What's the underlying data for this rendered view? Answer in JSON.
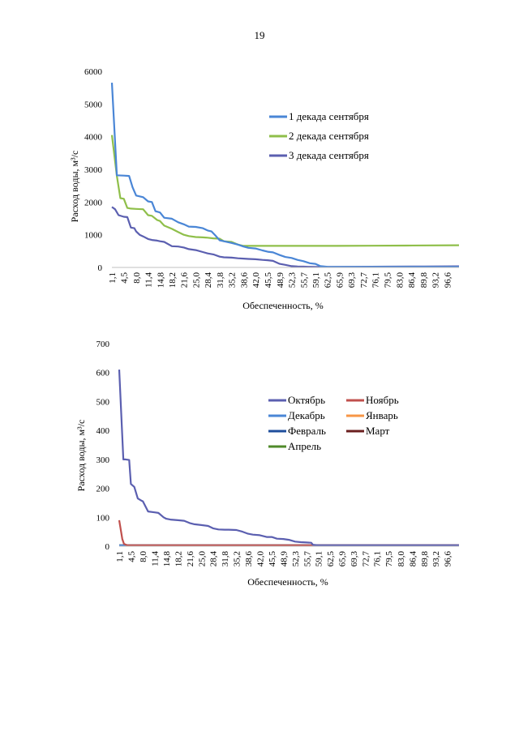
{
  "page_number": "19",
  "chart_data": [
    {
      "type": "line",
      "ylabel": "Расход воды, м³/с",
      "xlabel": "Обеспеченность, %",
      "ylim": [
        0,
        6000
      ],
      "yticks": [
        "0",
        "1000",
        "2000",
        "3000",
        "4000",
        "5000",
        "6000"
      ],
      "xticks": [
        "1,1",
        "4,5",
        "8,0",
        "11,4",
        "14,8",
        "18,2",
        "21,6",
        "25,0",
        "28,4",
        "31,8",
        "35,2",
        "38,6",
        "42,0",
        "45,5",
        "48,9",
        "52,3",
        "55,7",
        "59,1",
        "62,5",
        "65,9",
        "69,3",
        "72,7",
        "76,1",
        "79,5",
        "83,0",
        "86,4",
        "89,8",
        "93,2",
        "96,6"
      ],
      "xlim": [
        1.1,
        100
      ],
      "legend_position": "right",
      "series": [
        {
          "name": "1 декада сентября",
          "color": "#4a86d6",
          "x": [
            1.1,
            2.5,
            4.5,
            6.0,
            7.0,
            8.0,
            10.0,
            11.4,
            12.5,
            13.5,
            14.8,
            16.0,
            18.2,
            20.0,
            21.6,
            23.0,
            25.0,
            27.0,
            28.4,
            29.5,
            30.5,
            31.8,
            33.0,
            35.2,
            37.0,
            38.6,
            40.0,
            42.0,
            44.0,
            45.5,
            47.0,
            48.9,
            50.5,
            52.3,
            54.0,
            55.7,
            57.5,
            59.1,
            60.5,
            62.5,
            70,
            80,
            90,
            100
          ],
          "y": [
            5650,
            2820,
            2810,
            2800,
            2450,
            2200,
            2150,
            2020,
            2000,
            1720,
            1680,
            1520,
            1490,
            1380,
            1320,
            1250,
            1240,
            1200,
            1130,
            1100,
            990,
            830,
            800,
            750,
            700,
            640,
            600,
            580,
            520,
            480,
            460,
            380,
            320,
            290,
            230,
            190,
            130,
            110,
            40,
            20,
            15,
            15,
            15,
            15
          ]
        },
        {
          "name": "2 декада сентября",
          "color": "#8fbf4a",
          "x": [
            1.1,
            2.5,
            3.5,
            4.5,
            5.5,
            6.5,
            8.0,
            10.0,
            11.4,
            12.5,
            14.0,
            14.8,
            16.0,
            18.2,
            20.0,
            21.6,
            23.0,
            25.0,
            27.0,
            28.4,
            30.0,
            31.8,
            33.0,
            35.2,
            37.0,
            38.6,
            45,
            55,
            65,
            75,
            85,
            100
          ],
          "y": [
            4050,
            2800,
            2120,
            2100,
            1820,
            1800,
            1790,
            1780,
            1600,
            1580,
            1450,
            1420,
            1280,
            1180,
            1080,
            1000,
            960,
            930,
            920,
            910,
            890,
            880,
            800,
            780,
            700,
            660,
            660,
            660,
            660,
            665,
            670,
            680
          ]
        },
        {
          "name": "3 декада сентября",
          "color": "#5b5fb0",
          "x": [
            1.1,
            2.0,
            3.0,
            4.5,
            5.5,
            6.5,
            7.5,
            8.0,
            9.0,
            10.0,
            11.4,
            12.5,
            14.0,
            14.8,
            16.0,
            18.2,
            20.0,
            21.6,
            23.0,
            25.0,
            27.0,
            28.4,
            30.0,
            31.8,
            33.0,
            35.2,
            37.0,
            38.6,
            40.0,
            42.0,
            44.0,
            45.5,
            47.0,
            48.9,
            50.5,
            52.3,
            54.0,
            55.7,
            57.0,
            59.1,
            62.5,
            70,
            80,
            90,
            100
          ],
          "y": [
            1850,
            1780,
            1600,
            1550,
            1540,
            1220,
            1200,
            1100,
            1000,
            950,
            870,
            840,
            820,
            800,
            780,
            650,
            640,
            610,
            560,
            530,
            470,
            430,
            400,
            330,
            310,
            300,
            280,
            270,
            260,
            250,
            230,
            220,
            200,
            110,
            80,
            40,
            30,
            25,
            20,
            15,
            15,
            20,
            25,
            30,
            35
          ]
        }
      ]
    },
    {
      "type": "line",
      "ylabel": "Расход воды, м³/с",
      "xlabel": "Обеспеченность, %",
      "ylim": [
        0,
        700
      ],
      "yticks": [
        "0",
        "100",
        "200",
        "300",
        "400",
        "500",
        "600",
        "700"
      ],
      "xticks": [
        "1,1",
        "4,5",
        "8,0",
        "11,4",
        "14,8",
        "18,2",
        "21,6",
        "25,0",
        "28,4",
        "31,8",
        "35,2",
        "38,6",
        "42,0",
        "45,5",
        "48,9",
        "52,3",
        "55,7",
        "59,1",
        "62,5",
        "65,9",
        "69,3",
        "72,7",
        "76,1",
        "79,5",
        "83,0",
        "86,4",
        "89,8",
        "93,2",
        "96,6"
      ],
      "xlim": [
        1.1,
        100
      ],
      "legend_position": "right",
      "series": [
        {
          "name": "Октябрь",
          "color": "#5b5fb0",
          "x": [
            1.1,
            2.3,
            3.0,
            4.0,
            4.5,
            5.5,
            6.5,
            7.5,
            8.0,
            9.5,
            11.4,
            12.5,
            14.0,
            14.8,
            16.0,
            18.2,
            20.0,
            21.6,
            23.0,
            25.0,
            27.0,
            28.4,
            30.0,
            31.8,
            33.0,
            35.2,
            37.0,
            38.6,
            40.0,
            42.0,
            44.0,
            45.5,
            47.0,
            48.9,
            50.5,
            52.3,
            54.0,
            55.7,
            57.0,
            57.5,
            59.1,
            70,
            85,
            100
          ],
          "y": [
            610,
            300,
            300,
            298,
            215,
            205,
            165,
            158,
            155,
            120,
            117,
            115,
            100,
            95,
            92,
            90,
            88,
            80,
            76,
            73,
            70,
            62,
            58,
            57,
            57,
            56,
            50,
            43,
            40,
            38,
            32,
            32,
            26,
            25,
            22,
            16,
            14,
            13,
            12,
            5,
            3,
            3,
            3,
            3
          ]
        },
        {
          "name": "Ноябрь",
          "color": "#c0504d",
          "x": [
            1.1,
            2.0,
            2.5,
            3.5,
            5,
            100
          ],
          "y": [
            90,
            25,
            8,
            3,
            3,
            3
          ]
        },
        {
          "name": "Декабрь",
          "color": "#4a86d6",
          "x": [
            1.1,
            100
          ],
          "y": [
            3,
            3
          ]
        },
        {
          "name": "Январь",
          "color": "#f79646",
          "x": [
            1.1,
            100
          ],
          "y": [
            3,
            3
          ]
        },
        {
          "name": "Февраль",
          "color": "#1f4e9c",
          "x": [
            1.1,
            100
          ],
          "y": [
            3,
            3
          ]
        },
        {
          "name": "Март",
          "color": "#6b1f1f",
          "x": [
            1.1,
            100
          ],
          "y": [
            3,
            3
          ]
        },
        {
          "name": "Апрель",
          "color": "#4f8a2a",
          "x": [
            1.1,
            100
          ],
          "y": [
            3,
            3
          ]
        }
      ]
    }
  ]
}
